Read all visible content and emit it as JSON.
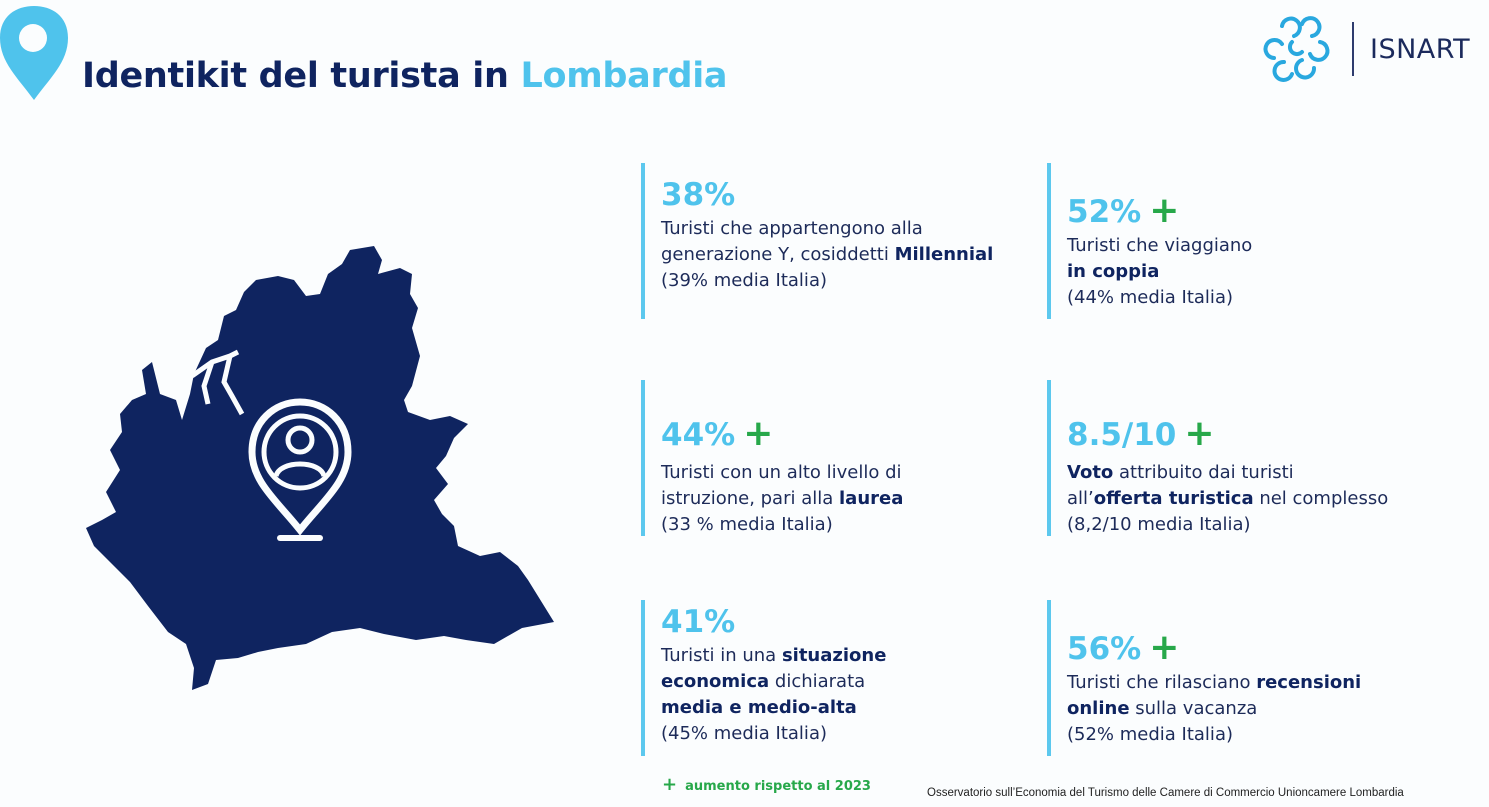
{
  "header": {
    "title_prefix": "Identikit del turista in ",
    "title_accent": "Lombardia"
  },
  "logo": {
    "text": "ISNART"
  },
  "stats": [
    {
      "value": "38%",
      "plus": "",
      "d1": "Turisti che appartengono alla",
      "d2a": "generazione Y, cosiddetti ",
      "d2b": "Millennial",
      "d3": "(39% media Italia)"
    },
    {
      "value": "52%",
      "plus": "+",
      "d1": "Turisti che viaggiano",
      "d2b": "in coppia",
      "d3": "(44% media Italia)"
    },
    {
      "value": "44%",
      "plus": "+",
      "d1": "Turisti con un alto livello di",
      "d2a": "istruzione, pari alla ",
      "d2b": "laurea",
      "d3": "(33 % media Italia)"
    },
    {
      "value": "8.5/10",
      "plus": "+",
      "d1b": "Voto",
      "d1a": " attribuito dai turisti",
      "d2a": "all’",
      "d2b": "offerta turistica",
      "d2c": " nel complesso",
      "d3": "(8,2/10 media Italia)"
    },
    {
      "value": "41%",
      "plus": "",
      "d1a": "Turisti in una ",
      "d1b": "situazione",
      "d2b": "economica",
      "d2c": " dichiarata",
      "d3b": "media e medio-alta",
      "d4": "(45% media Italia)"
    },
    {
      "value": "56%",
      "plus": "+",
      "d1a": "Turisti che rilasciano ",
      "d1b": "recensioni",
      "d2b": "online",
      "d2c": " sulla vacanza",
      "d3": "(52% media Italia)"
    }
  ],
  "legend": {
    "plus": "+",
    "text": "aumento rispetto al 2023"
  },
  "footer": {
    "text": "Osservatorio sull’Economia del Turismo delle Camere di Commercio Unioncamere Lombardia"
  },
  "colors": {
    "navy": "#0f2460",
    "accent": "#4fc3ec",
    "increase": "#27a84a"
  }
}
